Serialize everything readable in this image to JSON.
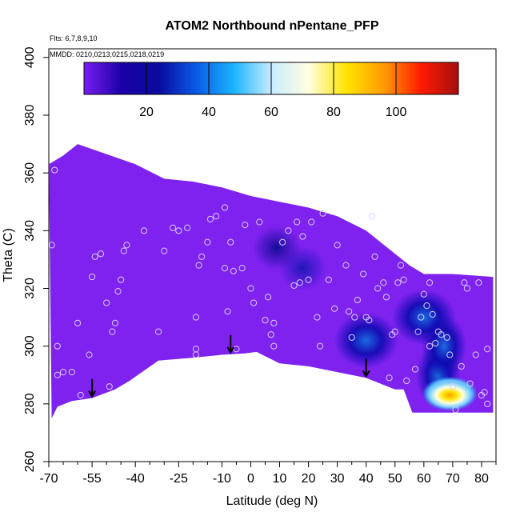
{
  "chart_data": {
    "type": "heatmap",
    "title": "ATOM2 Northbound nPentane_PFP",
    "flights_note": "Flts: 6,7,8,9,10",
    "dates_note": "MMDD: 0210,0213,0215,0218,0219",
    "xlabel": "Latitude (deg N)",
    "ylabel": "Theta (C)",
    "xlim": [
      -70,
      85
    ],
    "ylim": [
      260,
      403
    ],
    "x_ticks": [
      -70,
      -55,
      -40,
      -25,
      -10,
      0,
      10,
      20,
      30,
      40,
      50,
      60,
      70,
      80
    ],
    "x_minor_ticks": [
      -65,
      -60,
      -50,
      -45,
      -35,
      -30,
      -20,
      -15,
      -5,
      5,
      15,
      25,
      35,
      45,
      55,
      65,
      75,
      85
    ],
    "y_ticks": [
      260,
      280,
      300,
      320,
      340,
      360,
      380,
      400
    ],
    "colorbar": {
      "min": 0,
      "max": 120,
      "ticks": [
        20,
        40,
        60,
        80,
        100
      ],
      "stops": [
        "#7a1df2",
        "#1a00a8",
        "#0a0a9e",
        "#0a5ae8",
        "#1ab4ff",
        "#c8ecff",
        "#ffffe0",
        "#ffe400",
        "#ff9c00",
        "#ff1a00",
        "#a41010"
      ]
    },
    "surface_boundary": [
      [
        -69,
        275
      ],
      [
        -67,
        279
      ],
      [
        -62,
        281
      ],
      [
        -55,
        282
      ],
      [
        -47,
        285
      ],
      [
        -42,
        288
      ],
      [
        -32,
        295
      ],
      [
        -20,
        296
      ],
      [
        -10,
        297
      ],
      [
        -2,
        297.5
      ],
      [
        2,
        298
      ],
      [
        10,
        294
      ],
      [
        20,
        293
      ],
      [
        30,
        291
      ],
      [
        40,
        289
      ],
      [
        45,
        287
      ],
      [
        50,
        285
      ],
      [
        53,
        285
      ],
      [
        56,
        277
      ],
      [
        84,
        277
      ]
    ],
    "top_boundary": [
      [
        -70,
        363
      ],
      [
        -65,
        366
      ],
      [
        -60,
        370
      ],
      [
        -40,
        363
      ],
      [
        -30,
        358
      ],
      [
        -20,
        357
      ],
      [
        -10,
        355
      ],
      [
        0,
        352
      ],
      [
        20,
        348
      ],
      [
        30,
        345
      ],
      [
        40,
        340
      ],
      [
        50,
        332
      ],
      [
        55,
        328
      ],
      [
        60,
        325
      ],
      [
        70,
        325
      ],
      [
        84,
        324
      ]
    ],
    "concentration_features": [
      {
        "lat": 9,
        "theta": 334,
        "value": 9
      },
      {
        "lat": 18,
        "theta": 327,
        "value": 10
      },
      {
        "lat": 40,
        "theta": 302,
        "value": 13
      },
      {
        "lat": 60,
        "theta": 310,
        "value": 14
      },
      {
        "lat": 65,
        "theta": 290,
        "value": 30
      },
      {
        "lat": 67,
        "theta": 300,
        "value": 42
      },
      {
        "lat": 69,
        "theta": 284,
        "value": 80
      },
      {
        "lat": 69,
        "theta": 283,
        "value": 95
      }
    ],
    "sample_points": [
      [
        -69,
        335
      ],
      [
        -68,
        361
      ],
      [
        -67,
        300
      ],
      [
        -67,
        290
      ],
      [
        -65,
        291
      ],
      [
        -62,
        291
      ],
      [
        -60,
        308
      ],
      [
        -59,
        283
      ],
      [
        -56,
        297
      ],
      [
        -55,
        324
      ],
      [
        -54,
        331
      ],
      [
        -52,
        332
      ],
      [
        -50,
        315
      ],
      [
        -49,
        286
      ],
      [
        -48,
        305
      ],
      [
        -47,
        308
      ],
      [
        -46,
        319
      ],
      [
        -45,
        323
      ],
      [
        -44,
        333
      ],
      [
        -43,
        335
      ],
      [
        -37,
        340
      ],
      [
        -32,
        305
      ],
      [
        -30,
        333
      ],
      [
        -27,
        341
      ],
      [
        -25,
        340
      ],
      [
        -22,
        341
      ],
      [
        -19,
        297
      ],
      [
        -19,
        299
      ],
      [
        -19,
        310
      ],
      [
        -18,
        328
      ],
      [
        -17,
        331
      ],
      [
        -15,
        336
      ],
      [
        -14,
        344
      ],
      [
        -12,
        345
      ],
      [
        -9,
        348
      ],
      [
        -9,
        327
      ],
      [
        -8,
        312
      ],
      [
        -7,
        336
      ],
      [
        -6,
        326
      ],
      [
        -5,
        299
      ],
      [
        -3,
        327
      ],
      [
        -2,
        342
      ],
      [
        0,
        320
      ],
      [
        1,
        315
      ],
      [
        3,
        343
      ],
      [
        5,
        309
      ],
      [
        6,
        317
      ],
      [
        7,
        304
      ],
      [
        8,
        308
      ],
      [
        8,
        300
      ],
      [
        11,
        336
      ],
      [
        13,
        340
      ],
      [
        15,
        321
      ],
      [
        16,
        343
      ],
      [
        17,
        322
      ],
      [
        18,
        338
      ],
      [
        20,
        323
      ],
      [
        21,
        343
      ],
      [
        23,
        310
      ],
      [
        24,
        300
      ],
      [
        25,
        346
      ],
      [
        27,
        323
      ],
      [
        29,
        313
      ],
      [
        30,
        335
      ],
      [
        33,
        328
      ],
      [
        34,
        312
      ],
      [
        35,
        303
      ],
      [
        36,
        310
      ],
      [
        37,
        316
      ],
      [
        39,
        325
      ],
      [
        40,
        310
      ],
      [
        41,
        309
      ],
      [
        42,
        345
      ],
      [
        43,
        331
      ],
      [
        44,
        320
      ],
      [
        46,
        322
      ],
      [
        47,
        317
      ],
      [
        48,
        289
      ],
      [
        49,
        304
      ],
      [
        50,
        305
      ],
      [
        51,
        322
      ],
      [
        52,
        328
      ],
      [
        53,
        323
      ],
      [
        54,
        288
      ],
      [
        57,
        292
      ],
      [
        58,
        305
      ],
      [
        59,
        310
      ],
      [
        60,
        318
      ],
      [
        61,
        314
      ],
      [
        62,
        322
      ],
      [
        62,
        300
      ],
      [
        63,
        311
      ],
      [
        64,
        301
      ],
      [
        65,
        305
      ],
      [
        66,
        304
      ],
      [
        68,
        303
      ],
      [
        69,
        297
      ],
      [
        70,
        286
      ],
      [
        71,
        278
      ],
      [
        73,
        293
      ],
      [
        74,
        322
      ],
      [
        75,
        320
      ],
      [
        76,
        287
      ],
      [
        78,
        297
      ],
      [
        79,
        322
      ],
      [
        80,
        283
      ],
      [
        81,
        284
      ],
      [
        82,
        280
      ],
      [
        82,
        299
      ]
    ],
    "arrows": [
      -55,
      -7,
      40
    ]
  }
}
